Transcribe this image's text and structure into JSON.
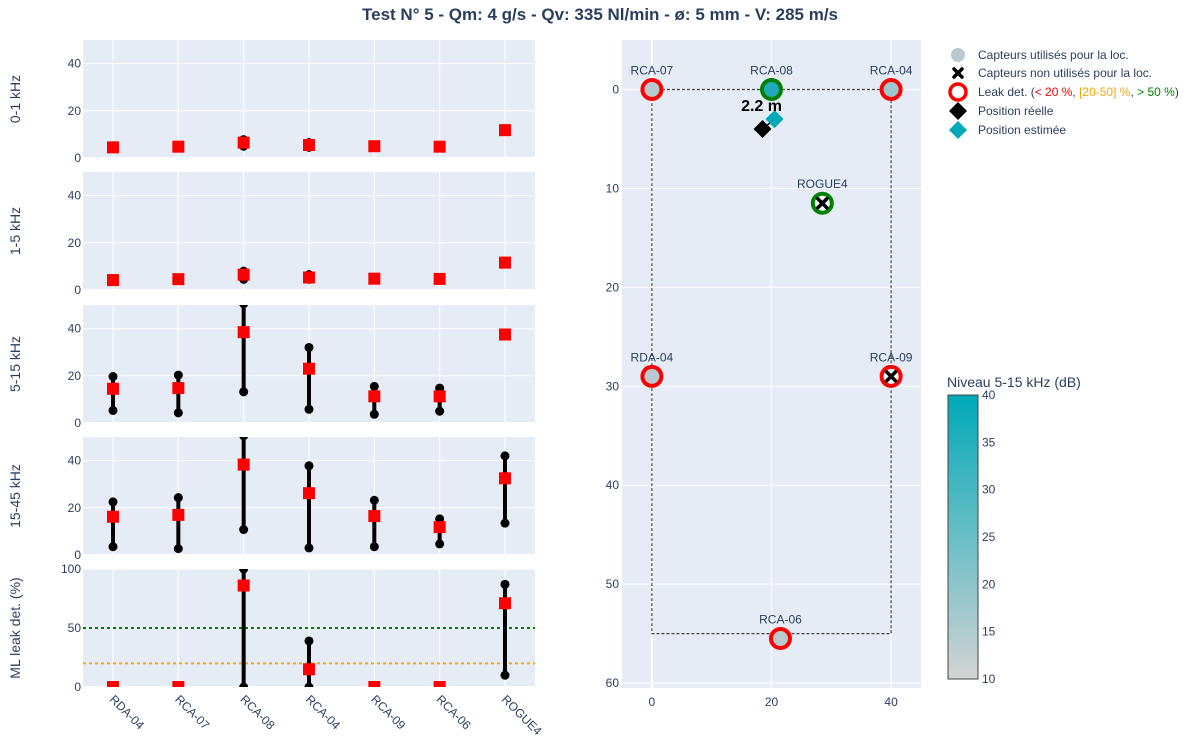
{
  "title": "Test N° 5 - Qm: 4 g/s - Qv: 335 Nl/min - ø: 5 mm - V: 285 m/s",
  "chart_data": [
    {
      "type": "scatter",
      "categories": [
        "RDA-04",
        "RCA-07",
        "RCA-08",
        "RCA-04",
        "RCA-09",
        "RCA-06",
        "ROGUE4"
      ],
      "panels": [
        {
          "ylabel": "0-1 kHz",
          "ylim": [
            0,
            50
          ],
          "yticks": [
            0,
            20,
            40
          ],
          "values": [
            4.5,
            4.8,
            6.5,
            5.5,
            5.0,
            4.8,
            11.8
          ],
          "low": [
            null,
            null,
            5.0,
            4.5,
            null,
            null,
            null
          ],
          "high": [
            null,
            null,
            7.8,
            6.5,
            null,
            null,
            null
          ]
        },
        {
          "ylabel": "1-5 kHz",
          "ylim": [
            0,
            50
          ],
          "yticks": [
            0,
            20,
            40
          ],
          "values": [
            4.2,
            4.6,
            6.5,
            5.3,
            4.8,
            4.7,
            11.6
          ],
          "low": [
            null,
            null,
            4.5,
            4.5,
            null,
            null,
            null
          ],
          "high": [
            null,
            null,
            8.0,
            6.5,
            null,
            null,
            null
          ]
        },
        {
          "ylabel": "5-15 kHz",
          "ylim": [
            0,
            50
          ],
          "yticks": [
            0,
            20,
            40
          ],
          "values": [
            14.5,
            14.8,
            38.5,
            23.0,
            11.3,
            11.3,
            37.5
          ],
          "low": [
            5.3,
            4.3,
            13.2,
            5.8,
            3.7,
            5.0,
            null
          ],
          "high": [
            19.7,
            20.3,
            50.5,
            32.0,
            15.5,
            14.8,
            null
          ]
        },
        {
          "ylabel": "15-45 kHz",
          "ylim": [
            0,
            50
          ],
          "yticks": [
            0,
            20,
            40
          ],
          "values": [
            16.2,
            17.0,
            38.3,
            26.2,
            16.5,
            11.8,
            32.5
          ],
          "low": [
            3.5,
            2.7,
            10.8,
            3.0,
            3.5,
            4.7,
            13.5
          ],
          "high": [
            22.5,
            24.3,
            50.5,
            37.8,
            23.2,
            15.3,
            42.0
          ]
        },
        {
          "ylabel": "ML leak det. (%)",
          "ylim": [
            0,
            100
          ],
          "yticks": [
            0,
            50,
            100
          ],
          "values": [
            0,
            0,
            86,
            15,
            0,
            0,
            71
          ],
          "low": [
            null,
            null,
            0,
            0,
            null,
            null,
            10
          ],
          "high": [
            null,
            null,
            100,
            39,
            null,
            null,
            87
          ],
          "thresholds": [
            {
              "value": 50,
              "color": "#008000"
            },
            {
              "value": 20,
              "color": "#FFA500"
            }
          ]
        }
      ]
    },
    {
      "type": "scatter",
      "xlim": [
        -5,
        45
      ],
      "ylim": [
        60.5,
        -5
      ],
      "xticks": [
        0,
        20,
        40
      ],
      "yticks": [
        0,
        10,
        20,
        30,
        40,
        50,
        60
      ],
      "zone": {
        "x": [
          0,
          40
        ],
        "y": [
          0,
          55
        ]
      },
      "sensors": [
        {
          "label": "RCA-07",
          "x": 0,
          "y": 0,
          "used": true,
          "ring": "#FF0000",
          "fill": "#B8C9D0"
        },
        {
          "label": "RCA-08",
          "x": 20,
          "y": 0,
          "used": true,
          "ring": "#008000",
          "fill": "#1FA9BA"
        },
        {
          "label": "RCA-04",
          "x": 40,
          "y": 0,
          "used": true,
          "ring": "#FF0000",
          "fill": "#9FC7D0"
        },
        {
          "label": "ROGUE4",
          "x": 28.5,
          "y": 11.5,
          "used": false,
          "ring": "#008000"
        },
        {
          "label": "RDA-04",
          "x": 0,
          "y": 29,
          "used": true,
          "ring": "#FF0000",
          "fill": "#B8C9D0"
        },
        {
          "label": "RCA-09",
          "x": 40,
          "y": 29,
          "used": false,
          "ring": "#FF0000"
        },
        {
          "label": "RCA-06",
          "x": 21.5,
          "y": 55.5,
          "used": true,
          "ring": "#FF0000",
          "fill": "#B8C9D0"
        }
      ],
      "real_position": {
        "x": 18.5,
        "y": 4
      },
      "estimated_position": {
        "x": 20.5,
        "y": 3
      },
      "distance_label": "2.2 m",
      "legend": {
        "used": "Capteurs utilisés pour la loc.",
        "unused": "Capteurs non utilisés pour la loc.",
        "leak_prefix": "Leak det. (",
        "leak_low": "< 20 %",
        "leak_sep1": ", ",
        "leak_mid": "[20-50] %",
        "leak_sep2": ",  ",
        "leak_high": "> 50 %",
        "leak_suffix": ")",
        "real": "Position réelle",
        "estimated": "Position estimée",
        "colors": {
          "low": "#FF0000",
          "mid": "#FFA500",
          "high": "#008000"
        }
      },
      "colorbar": {
        "title": "Niveau 5-15 kHz (dB)",
        "range": [
          10,
          40
        ],
        "ticks": [
          10,
          15,
          20,
          25,
          30,
          35,
          40
        ],
        "color_low": "#D3D3D3",
        "color_high": "#00A9B8"
      }
    }
  ]
}
